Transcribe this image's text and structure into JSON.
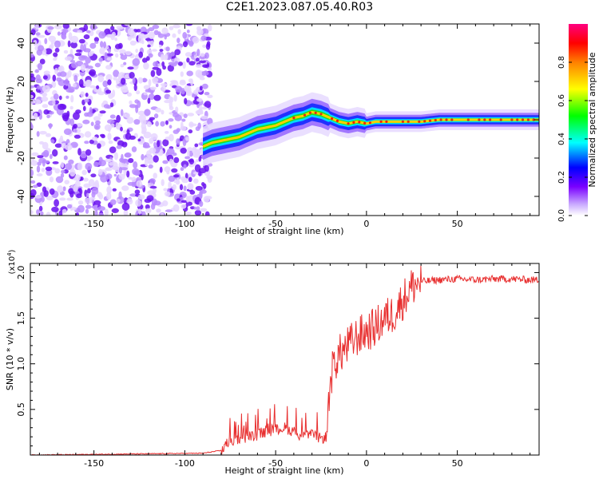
{
  "title": "C2E1.2023.087.05.40.R03",
  "chart_data": [
    {
      "type": "heatmap",
      "xlabel": "Height of straight line (km)",
      "ylabel": "Frequency (Hz)",
      "xlim": [
        -185,
        95
      ],
      "ylim": [
        -50,
        50
      ],
      "xticks": [
        -150,
        -100,
        -50,
        0,
        50
      ],
      "yticks": [
        -40,
        -20,
        0,
        20,
        40
      ],
      "colorbar": {
        "label": "Normalized spectral amplitude",
        "range": [
          0,
          1
        ],
        "ticks": [
          "0.0",
          "0.2",
          "0.4",
          "0.6",
          "0.8"
        ],
        "tick_values": [
          0,
          0.2,
          0.4,
          0.6,
          0.8
        ],
        "colormap": "rainbow",
        "colors": [
          "#ffffff",
          "#c0a0ff",
          "#6a00ff",
          "#0000ff",
          "#00ffff",
          "#00ff00",
          "#ffff00",
          "#ff8000",
          "#ff0000",
          "#ff0080"
        ]
      },
      "noise_region_x": [
        -185,
        -88
      ],
      "ridge": {
        "x": [
          -90,
          -85,
          -80,
          -75,
          -70,
          -65,
          -60,
          -55,
          -50,
          -45,
          -40,
          -35,
          -30,
          -25,
          -20,
          -15,
          -10,
          -5,
          0,
          5,
          10,
          20,
          30,
          40,
          50,
          60,
          70,
          80,
          90,
          95
        ],
        "y": [
          -14,
          -12,
          -11,
          -10,
          -9,
          -7,
          -5,
          -4,
          -3,
          -1,
          1,
          2,
          4,
          3,
          1,
          -1,
          -2,
          -1,
          -2,
          -1,
          -1,
          -1,
          -1,
          0,
          0,
          0,
          0,
          0,
          0,
          0
        ]
      }
    },
    {
      "type": "line",
      "xlabel": "Height of straight line (km)",
      "ylabel": "SNR (10 * v/v)",
      "exponent_label": "(x10",
      "exponent_power": "4",
      "exponent_close": ")",
      "xlim": [
        -185,
        95
      ],
      "ylim": [
        0,
        2.1
      ],
      "xticks": [
        -150,
        -100,
        -50,
        0,
        50
      ],
      "yticks": [
        0.5,
        1.0,
        1.5,
        2.0
      ],
      "ytick_labels": [
        "0.5",
        "1.0",
        "1.5",
        "2.0"
      ],
      "line_color": "#e83030",
      "series": [
        {
          "x": [
            -185,
            -90,
            -80,
            -75,
            -70,
            -65,
            -60,
            -55,
            -50,
            -45,
            -40,
            -35,
            -30,
            -25,
            -22,
            -20,
            -18,
            -15,
            -10,
            -5,
            0,
            5,
            10,
            15,
            20,
            25,
            30,
            40,
            50,
            60,
            70,
            80,
            90,
            95
          ],
          "y": [
            0.0,
            0.02,
            0.05,
            0.15,
            0.18,
            0.2,
            0.22,
            0.25,
            0.28,
            0.3,
            0.25,
            0.2,
            0.22,
            0.18,
            0.2,
            0.8,
            1.0,
            1.1,
            1.2,
            1.3,
            1.35,
            1.4,
            1.5,
            1.55,
            1.7,
            1.85,
            1.9,
            1.92,
            1.93,
            1.92,
            1.93,
            1.93,
            1.92,
            1.92
          ]
        }
      ]
    }
  ]
}
